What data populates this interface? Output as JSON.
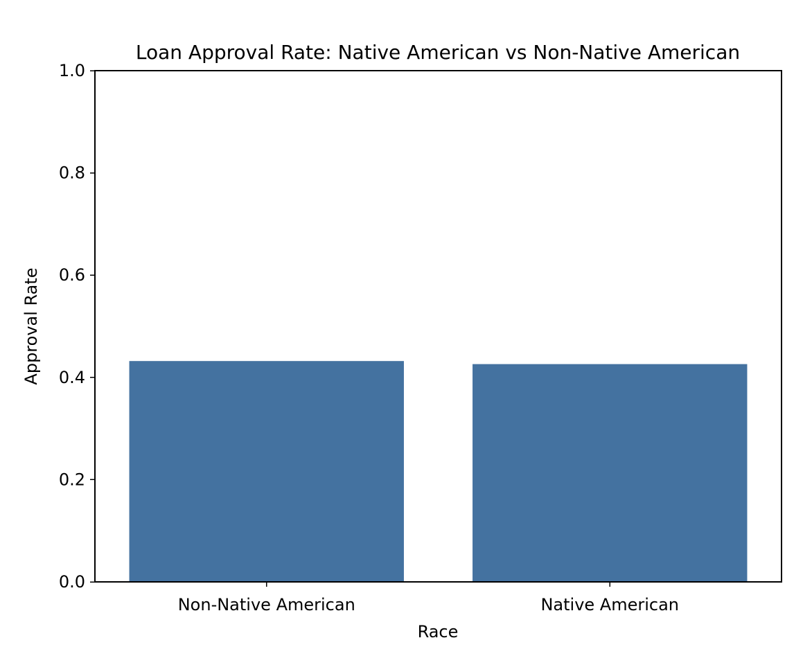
{
  "chart_data": {
    "type": "bar",
    "title": "Loan Approval Rate: Native American vs Non-Native American",
    "xlabel": "Race",
    "ylabel": "Approval Rate",
    "categories": [
      "Non-Native American",
      "Native American"
    ],
    "values": [
      0.432,
      0.426
    ],
    "ylim": [
      0,
      1.0
    ],
    "yticks": [
      "0.0",
      "0.2",
      "0.4",
      "0.6",
      "0.8",
      "1.0"
    ],
    "grid": false,
    "bar_color": "#4472a0"
  }
}
